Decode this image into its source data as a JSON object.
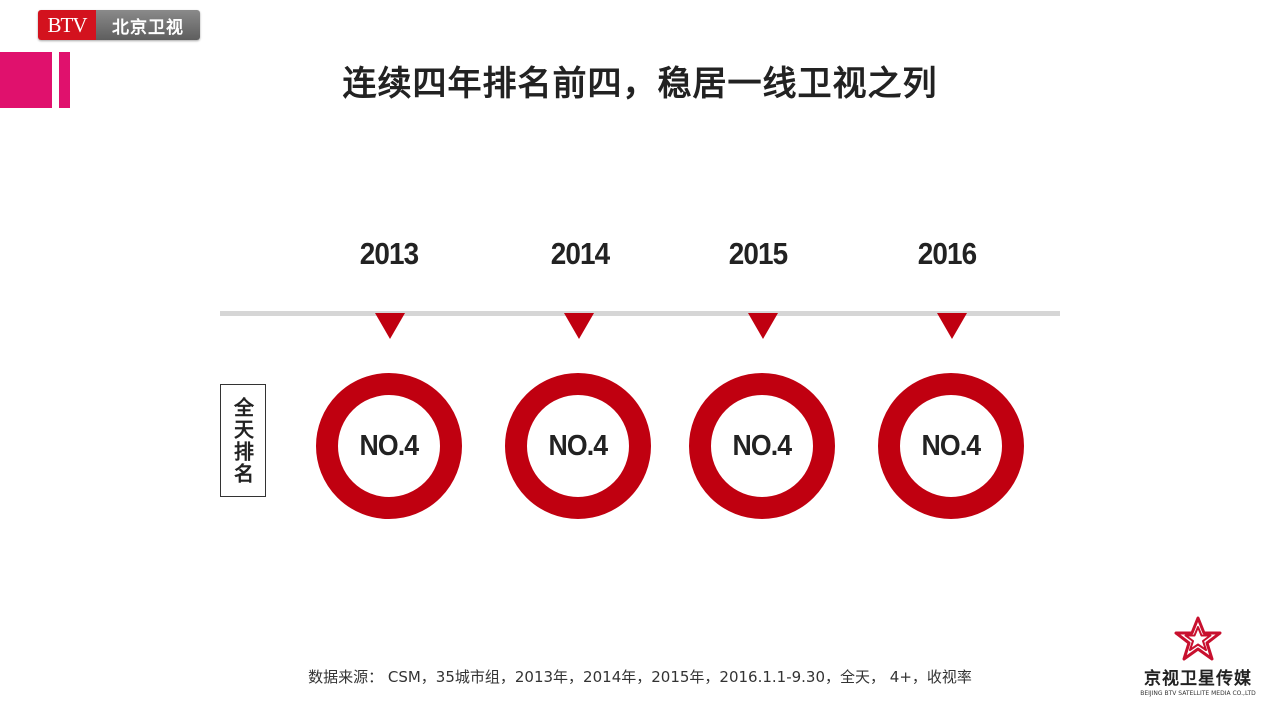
{
  "header": {
    "logo_btv": "BTV",
    "logo_cn": "北京卫视",
    "title": "连续四年排名前四，稳居一线卫视之列"
  },
  "timeline": {
    "row_label": "全天排名",
    "items": [
      {
        "year": "2013",
        "rank": "NO.4"
      },
      {
        "year": "2014",
        "rank": "NO.4"
      },
      {
        "year": "2015",
        "rank": "NO.4"
      },
      {
        "year": "2016",
        "rank": "NO.4"
      }
    ]
  },
  "footer": {
    "source": "数据来源： CSM，35城市组，2013年，2014年，2015年，2016.1.1-9.30，全天， 4+，收视率"
  },
  "company": {
    "name_cn": "京视卫星传媒",
    "name_en": "BEIJING BTV SATELLITE MEDIA CO.,LTD",
    "icon": "star-logo-icon"
  },
  "colors": {
    "accent_red": "#c00010",
    "accent_pink": "#e0116d",
    "line_gray": "#d6d6d6"
  }
}
